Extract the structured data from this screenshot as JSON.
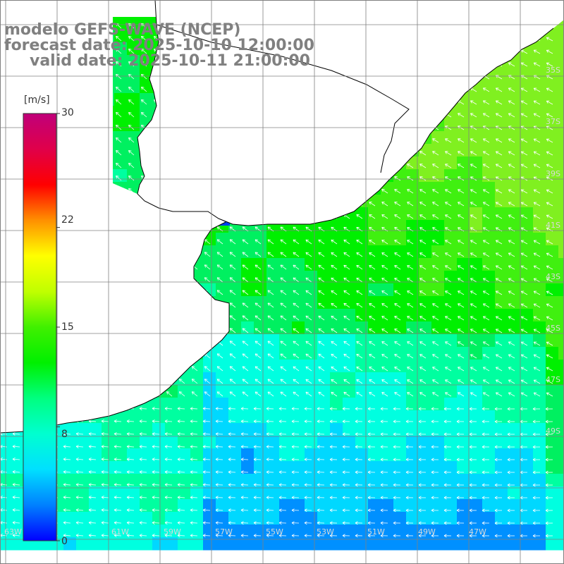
{
  "title": {
    "model": "modelo GEFS-WAVE (NCEP)",
    "forecast": "forecast date: 2025-10-10 12:00:00",
    "valid": "valid date: 2025-10-11 21:00:00"
  },
  "colorbar": {
    "unit": "[m/s]",
    "range": [
      0,
      30
    ],
    "ticks": [
      "30",
      "22",
      "15",
      "8",
      "0"
    ],
    "colors": [
      "#0000ff",
      "#0080ff",
      "#00e0ff",
      "#00ffd0",
      "#00ff80",
      "#00f000",
      "#40f000",
      "#c0ff00",
      "#ffff00",
      "#ff9000",
      "#ff0000",
      "#e0004a",
      "#c0007a"
    ]
  },
  "map": {
    "field": "wind speed",
    "land_color": "#ffffff",
    "coast_color": "#000000",
    "grid_color": "#808080",
    "vector_color": "#ffffff",
    "grid_lines": "on",
    "lat_labels": [
      "35S",
      "37S",
      "39S",
      "41S",
      "43S",
      "45S",
      "47S",
      "49S"
    ],
    "lon_labels": [
      "63W",
      "61W",
      "59W",
      "57W",
      "55W",
      "53W",
      "51W",
      "49W",
      "47W"
    ]
  }
}
